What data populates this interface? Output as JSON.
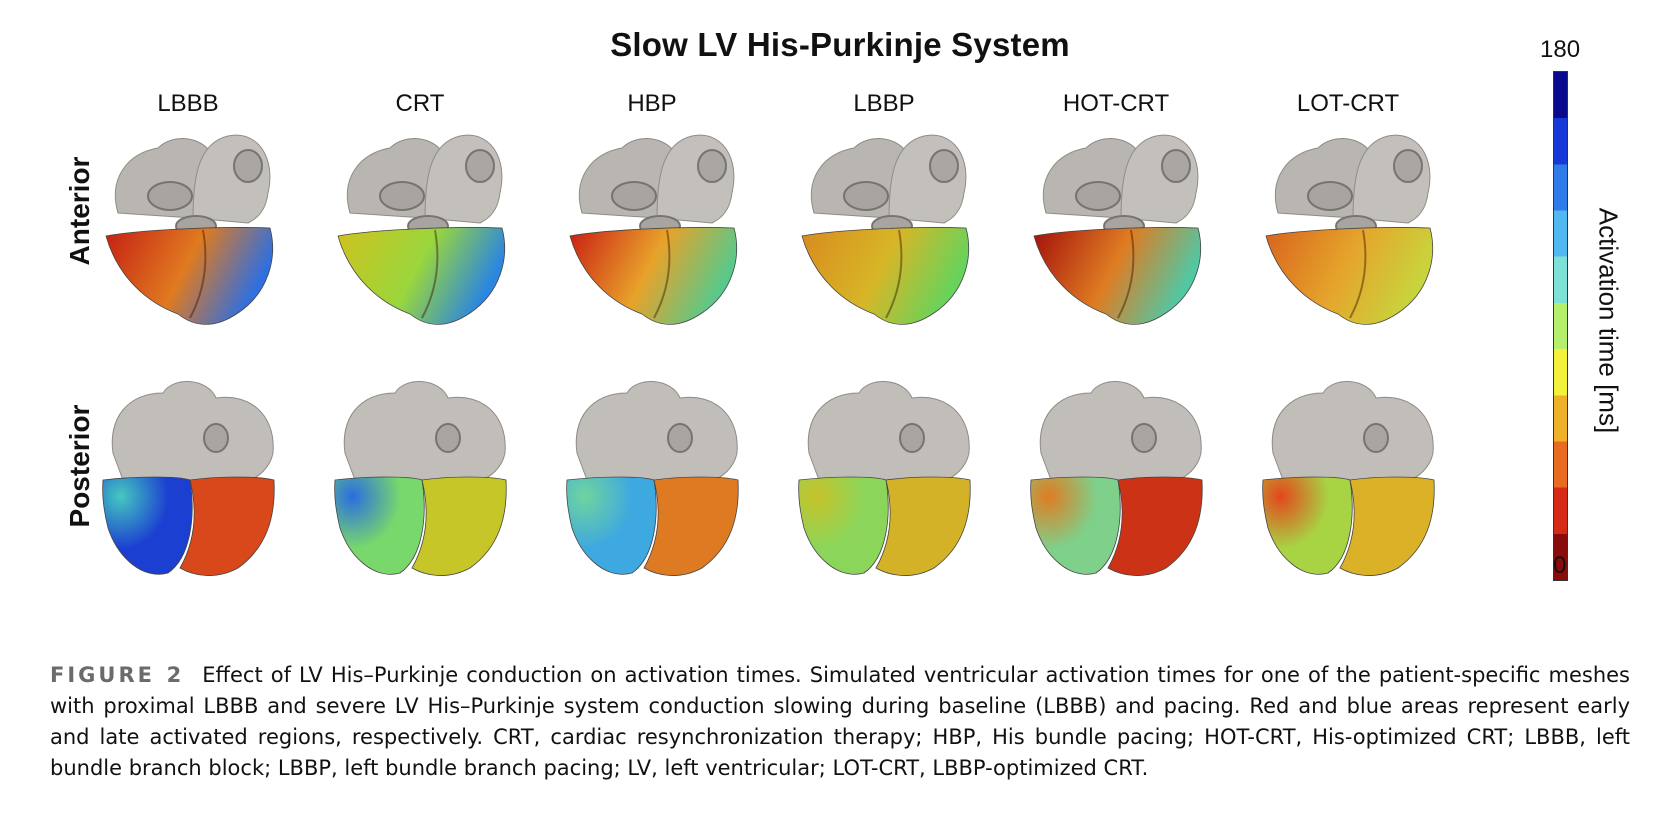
{
  "title": "Slow LV His-Purkinje System",
  "columns": [
    "LBBB",
    "CRT",
    "HBP",
    "LBBP",
    "HOT-CRT",
    "LOT-CRT"
  ],
  "rows": [
    "Anterior",
    "Posterior"
  ],
  "colorbar": {
    "max_label": "180",
    "min_label": "0",
    "title": "Activation time [ms]",
    "colors": [
      "#0a0a8c",
      "#1638d6",
      "#2f7bea",
      "#52b9f0",
      "#7fe0d8",
      "#b6ef6e",
      "#f3f23a",
      "#f0b12a",
      "#e96b1f",
      "#d42a16",
      "#8a0b0b"
    ]
  },
  "views": {
    "anterior": [
      {
        "left": "#c51f12",
        "right": "#2f6fe0",
        "mid": "#e07a20"
      },
      {
        "left": "#cfc21e",
        "right": "#2a86e0",
        "mid": "#9ad63c"
      },
      {
        "left": "#c91e14",
        "right": "#58c98a",
        "mid": "#e8a22a"
      },
      {
        "left": "#d88a1e",
        "right": "#67d35b",
        "mid": "#d7b627"
      },
      {
        "left": "#a3100c",
        "right": "#52c7a4",
        "mid": "#df7c22"
      },
      {
        "left": "#d8631c",
        "right": "#c8d43c",
        "mid": "#e5a52c"
      }
    ],
    "posterior": [
      {
        "left": "#1b3fd1",
        "right": "#d8481a",
        "mid": "#45c8c0"
      },
      {
        "left": "#79d86b",
        "right": "#c6c629",
        "mid": "#2a6ee0"
      },
      {
        "left": "#3ea8e0",
        "right": "#de7a22",
        "mid": "#6fd49e"
      },
      {
        "left": "#8bd55a",
        "right": "#d4b227",
        "mid": "#c6c22a"
      },
      {
        "left": "#7fd08a",
        "right": "#cc3216",
        "mid": "#e07c22"
      },
      {
        "left": "#a8d444",
        "right": "#dbb128",
        "mid": "#e3471c"
      }
    ]
  },
  "caption": {
    "label": "FIGURE 2",
    "text": "Effect of LV His–Purkinje conduction on activation times. Simulated ventricular activation times for one of the patient-specific meshes with proximal LBBB and severe LV His–Purkinje system conduction slowing during baseline (LBBB) and pacing. Red and blue areas represent early and late activated regions, respectively. CRT, cardiac resynchronization therapy; HBP, His bundle pacing; HOT-CRT, His-optimized CRT; LBBB, left bundle branch block; LBBP, left bundle branch pacing; LV, left ventricular; LOT-CRT, LBBP-optimized CRT."
  }
}
